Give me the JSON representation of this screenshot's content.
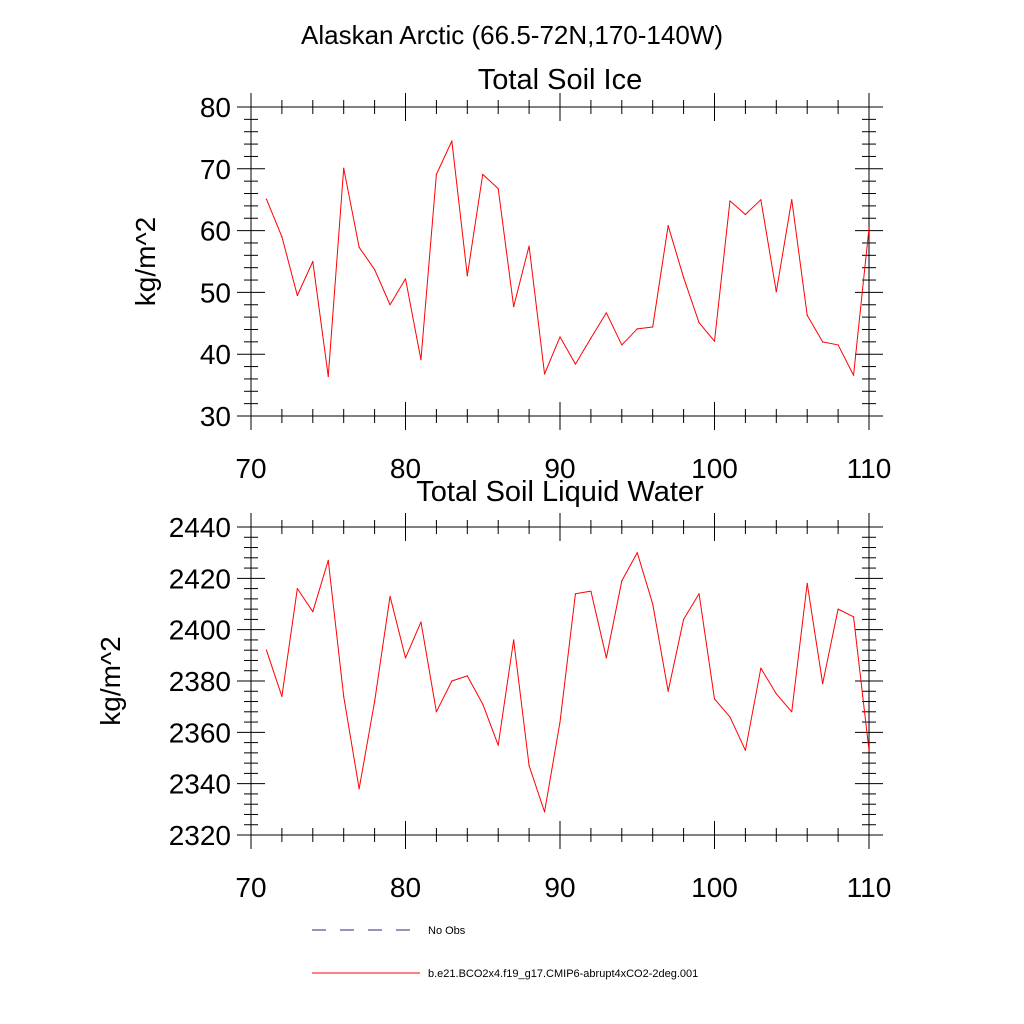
{
  "page": {
    "suptitle": "Alaskan Arctic (66.5-72N,170-140W)"
  },
  "chart_data": [
    {
      "type": "line",
      "title": "Total Soil Ice",
      "xlabel": "",
      "ylabel": "kg/m^2",
      "xlim": [
        70,
        110
      ],
      "ylim": [
        30,
        80
      ],
      "xticks": [
        70,
        80,
        90,
        100,
        110
      ],
      "yticks": [
        30,
        40,
        50,
        60,
        70,
        80
      ],
      "grid": false,
      "series": [
        {
          "name": "b.e21.BCO2x4.f19_g17.CMIP6-abrupt4xCO2-2deg.001",
          "color": "#ff0000",
          "x": [
            71,
            72,
            73,
            74,
            75,
            76,
            77,
            78,
            79,
            80,
            81,
            82,
            83,
            84,
            85,
            86,
            87,
            88,
            89,
            90,
            91,
            92,
            93,
            94,
            95,
            96,
            97,
            98,
            99,
            100,
            101,
            102,
            103,
            104,
            105,
            106,
            107,
            108,
            109,
            110
          ],
          "y": [
            65.1,
            59.0,
            49.5,
            55.0,
            36.4,
            70.1,
            57.3,
            53.7,
            48.0,
            52.2,
            39.1,
            69.1,
            74.5,
            52.7,
            69.1,
            66.8,
            47.7,
            57.5,
            36.8,
            42.8,
            38.4,
            42.6,
            46.7,
            41.5,
            44.1,
            44.4,
            60.8,
            52.4,
            45.1,
            42.1,
            64.8,
            62.6,
            65.0,
            50.1,
            65.0,
            46.3,
            42.0,
            41.5,
            36.6,
            60.4
          ]
        }
      ]
    },
    {
      "type": "line",
      "title": "Total Soil Liquid Water",
      "xlabel": "",
      "ylabel": "kg/m^2",
      "xlim": [
        70,
        110
      ],
      "ylim": [
        2320,
        2440
      ],
      "xticks": [
        70,
        80,
        90,
        100,
        110
      ],
      "yticks": [
        2320,
        2340,
        2360,
        2380,
        2400,
        2420,
        2440
      ],
      "grid": false,
      "series": [
        {
          "name": "b.e21.BCO2x4.f19_g17.CMIP6-abrupt4xCO2-2deg.001",
          "color": "#ff0000",
          "x": [
            71,
            72,
            73,
            74,
            75,
            76,
            77,
            78,
            79,
            80,
            81,
            82,
            83,
            84,
            85,
            86,
            87,
            88,
            89,
            90,
            91,
            92,
            93,
            94,
            95,
            96,
            97,
            98,
            99,
            100,
            101,
            102,
            103,
            104,
            105,
            106,
            107,
            108,
            109,
            110
          ],
          "y": [
            2392,
            2374,
            2416,
            2407,
            2427,
            2374,
            2338,
            2372,
            2413,
            2389,
            2403,
            2368,
            2380,
            2382,
            2371,
            2355,
            2396,
            2347,
            2329,
            2364,
            2414,
            2415,
            2389,
            2419,
            2430,
            2410,
            2376,
            2404,
            2414,
            2373,
            2366,
            2353,
            2385,
            2375,
            2368,
            2418,
            2379,
            2408,
            2405,
            2353
          ]
        }
      ]
    }
  ],
  "legend": {
    "placement": "bottom-left",
    "entries": [
      {
        "label": "No Obs",
        "style": "dashed",
        "color": "#2a2a7a"
      },
      {
        "label": "b.e21.BCO2x4.f19_g17.CMIP6-abrupt4xCO2-2deg.001",
        "style": "solid",
        "color": "#ff0000"
      }
    ]
  }
}
